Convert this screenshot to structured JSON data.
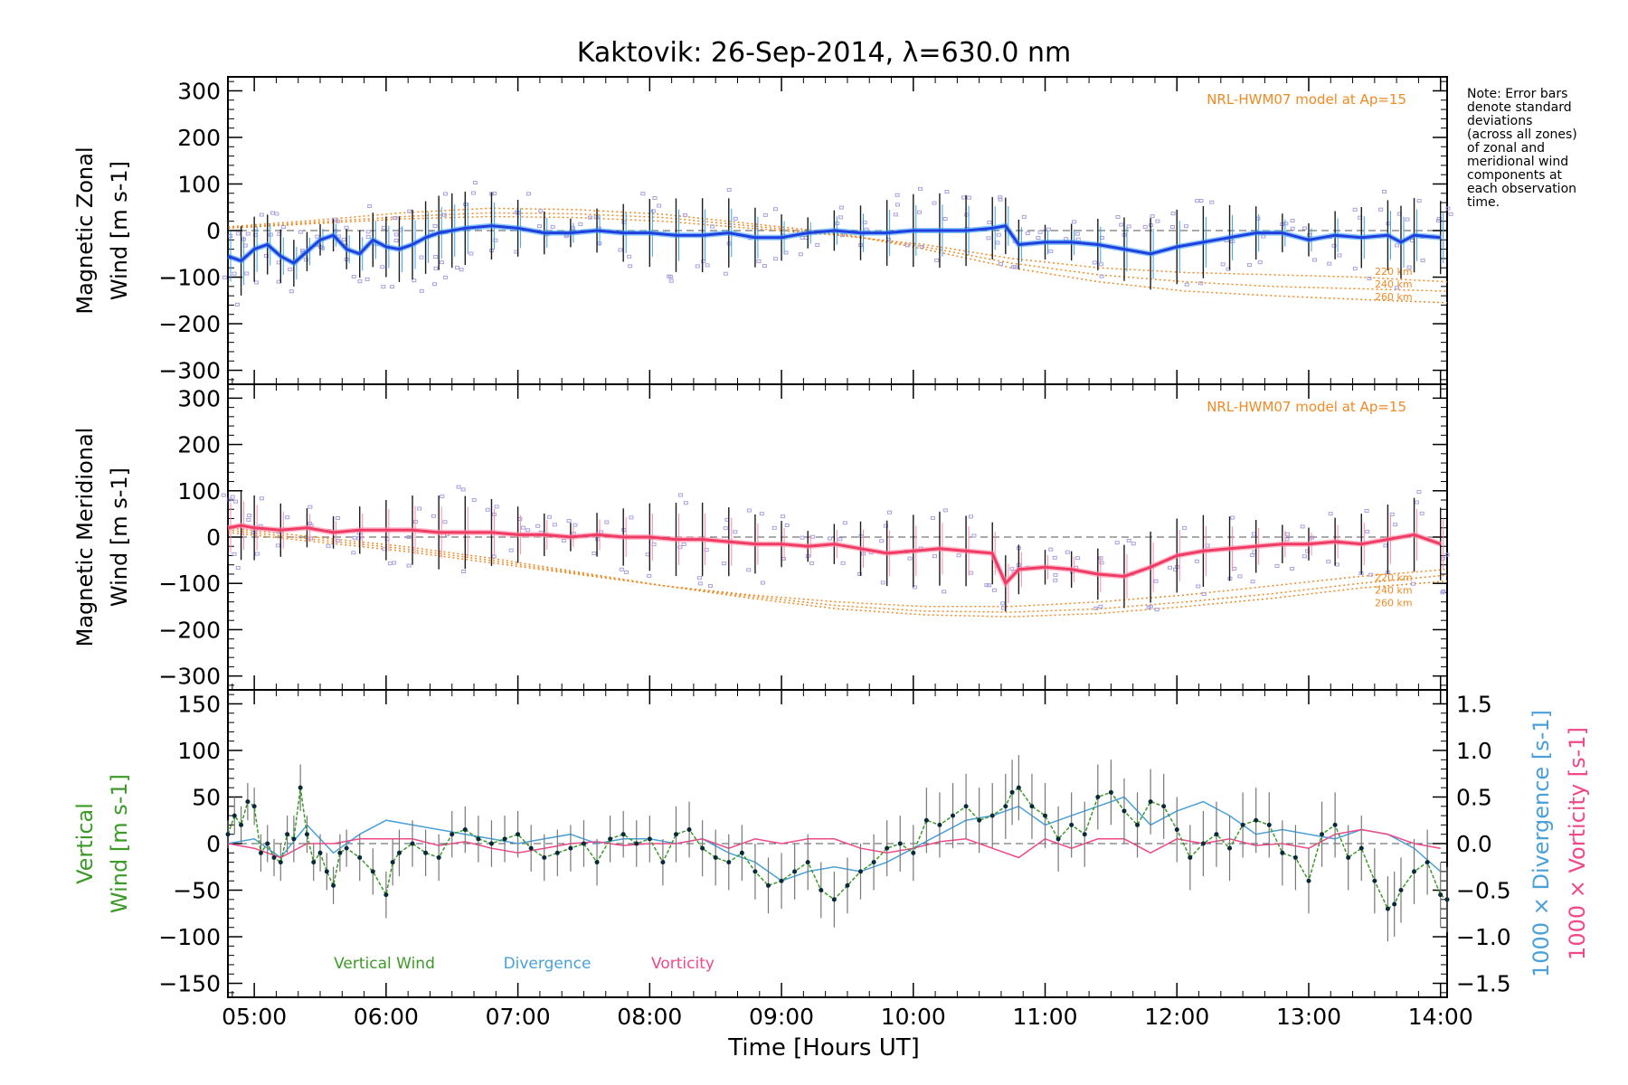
{
  "title": "Kaktovik: 26-Sep-2014, λ=630.0 nm",
  "note": [
    "Note: Error bars",
    "denote standard",
    "deviations",
    "(across all zones)",
    "of zonal and",
    "meridional wind",
    "components at",
    "each observation",
    "time."
  ],
  "colors": {
    "zonal": "#1f3fe0",
    "zonal_light": "#3aa0f0",
    "meridional": "#f03c64",
    "meridional_light": "#ff8aa8",
    "model": "#f08a24",
    "scatter": "#a8a0e0",
    "errorbar": "#1a1a1a",
    "vertical": "#3c9a28",
    "divergence": "#4aa0d8",
    "vorticity": "#f04888"
  },
  "xaxis": {
    "label": "Time [Hours UT]",
    "ticks": [
      "05:00",
      "06:00",
      "07:00",
      "08:00",
      "09:00",
      "10:00",
      "11:00",
      "12:00",
      "13:00",
      "14:00"
    ],
    "range": [
      4.8,
      14.05
    ]
  },
  "chart_data": [
    {
      "type": "line",
      "name": "zonal",
      "ylabel_lines": [
        "Magnetic Zonal",
        "Wind [m s-1]"
      ],
      "model_label": "NRL-HWM07 model at Ap=15",
      "model_altitudes": [
        "220 km",
        "240 km",
        "260 km"
      ],
      "ylim": [
        -330,
        330
      ],
      "yticks": [
        -300,
        -200,
        -100,
        0,
        100,
        200,
        300
      ],
      "x": [
        4.8,
        4.9,
        5.0,
        5.1,
        5.2,
        5.3,
        5.4,
        5.5,
        5.6,
        5.7,
        5.8,
        5.9,
        6.0,
        6.1,
        6.2,
        6.3,
        6.4,
        6.5,
        6.6,
        6.8,
        7.0,
        7.2,
        7.4,
        7.6,
        7.8,
        8.0,
        8.2,
        8.4,
        8.6,
        8.8,
        9.0,
        9.2,
        9.4,
        9.6,
        9.8,
        10.0,
        10.2,
        10.4,
        10.6,
        10.7,
        10.8,
        11.0,
        11.2,
        11.4,
        11.6,
        11.8,
        12.0,
        12.2,
        12.4,
        12.6,
        12.8,
        13.0,
        13.2,
        13.4,
        13.6,
        13.7,
        13.8,
        14.0
      ],
      "values": [
        -55,
        -65,
        -40,
        -30,
        -55,
        -70,
        -45,
        -20,
        -10,
        -40,
        -50,
        -20,
        -35,
        -40,
        -30,
        -15,
        -5,
        0,
        5,
        10,
        5,
        -5,
        -5,
        0,
        -5,
        -5,
        -10,
        -10,
        -5,
        -15,
        -15,
        -5,
        0,
        -5,
        -5,
        0,
        0,
        0,
        5,
        10,
        -30,
        -25,
        -25,
        -30,
        -40,
        -50,
        -35,
        -25,
        -15,
        -5,
        -5,
        -20,
        -10,
        -15,
        -10,
        -25,
        -10,
        -15
      ],
      "model_curves": [
        {
          "altitude": "220 km",
          "values": [
            5,
            15,
            25,
            30,
            28,
            20,
            5,
            -10,
            -30,
            -60,
            -80,
            -90,
            -95,
            -100,
            -110
          ]
        },
        {
          "altitude": "240 km",
          "values": [
            5,
            18,
            30,
            38,
            36,
            28,
            10,
            -8,
            -35,
            -70,
            -95,
            -110,
            -120,
            -125,
            -130
          ]
        },
        {
          "altitude": "260 km",
          "values": [
            8,
            22,
            38,
            48,
            45,
            35,
            15,
            -5,
            -40,
            -80,
            -110,
            -130,
            -140,
            -148,
            -155
          ]
        }
      ]
    },
    {
      "type": "line",
      "name": "meridional",
      "ylabel_lines": [
        "Magnetic Meridional",
        "Wind [m s-1]"
      ],
      "model_label": "NRL-HWM07 model at Ap=15",
      "model_altitudes": [
        "220 km",
        "240 km",
        "260 km"
      ],
      "ylim": [
        -330,
        330
      ],
      "yticks": [
        -300,
        -200,
        -100,
        0,
        100,
        200,
        300
      ],
      "x": [
        4.8,
        4.9,
        5.0,
        5.2,
        5.4,
        5.6,
        5.8,
        6.0,
        6.2,
        6.4,
        6.6,
        6.8,
        7.0,
        7.2,
        7.4,
        7.6,
        7.8,
        8.0,
        8.2,
        8.4,
        8.6,
        8.8,
        9.0,
        9.2,
        9.4,
        9.6,
        9.8,
        10.0,
        10.2,
        10.4,
        10.6,
        10.7,
        10.8,
        11.0,
        11.2,
        11.4,
        11.6,
        11.8,
        12.0,
        12.2,
        12.4,
        12.6,
        12.8,
        13.0,
        13.2,
        13.4,
        13.6,
        13.8,
        14.0
      ],
      "values": [
        20,
        25,
        20,
        15,
        20,
        10,
        15,
        15,
        15,
        10,
        10,
        10,
        5,
        5,
        0,
        5,
        0,
        0,
        -5,
        -5,
        -10,
        -15,
        -15,
        -20,
        -15,
        -25,
        -35,
        -30,
        -25,
        -30,
        -35,
        -100,
        -70,
        -65,
        -70,
        -80,
        -85,
        -65,
        -40,
        -30,
        -25,
        -20,
        -15,
        -15,
        -10,
        -15,
        -5,
        5,
        -15
      ],
      "model_curves": [
        {
          "altitude": "220 km",
          "values": [
            10,
            -10,
            -30,
            -55,
            -80,
            -105,
            -125,
            -140,
            -150,
            -150,
            -140,
            -125,
            -105,
            -85,
            -70
          ]
        },
        {
          "altitude": "240 km",
          "values": [
            15,
            -5,
            -25,
            -50,
            -78,
            -105,
            -128,
            -148,
            -160,
            -162,
            -155,
            -140,
            -122,
            -100,
            -82
          ]
        },
        {
          "altitude": "260 km",
          "values": [
            20,
            0,
            -20,
            -45,
            -75,
            -105,
            -132,
            -155,
            -168,
            -172,
            -165,
            -150,
            -132,
            -110,
            -95
          ]
        }
      ]
    },
    {
      "type": "line",
      "name": "vertical",
      "ylabel_lines": [
        "Vertical",
        "Wind [m s-1]"
      ],
      "ylabel_right_1": "1000 × Divergence [s-1]",
      "ylabel_right_2": "1000 × Vorticity [s-1]",
      "ylim": [
        -165,
        165
      ],
      "yticks": [
        -150,
        -100,
        -50,
        0,
        50,
        100,
        150
      ],
      "y2lim": [
        -1.65,
        1.65
      ],
      "y2ticks": [
        -1.5,
        -1.0,
        -0.5,
        0.0,
        0.5,
        1.0,
        1.5
      ],
      "legend": [
        "Vertical Wind",
        "Divergence",
        "Vorticity"
      ],
      "x": [
        4.8,
        4.85,
        4.9,
        4.95,
        5.0,
        5.05,
        5.1,
        5.15,
        5.2,
        5.25,
        5.3,
        5.35,
        5.4,
        5.45,
        5.5,
        5.55,
        5.6,
        5.65,
        5.7,
        5.8,
        5.9,
        6.0,
        6.05,
        6.1,
        6.2,
        6.3,
        6.4,
        6.5,
        6.6,
        6.7,
        6.8,
        6.9,
        7.0,
        7.1,
        7.2,
        7.3,
        7.4,
        7.5,
        7.6,
        7.7,
        7.8,
        7.9,
        8.0,
        8.1,
        8.2,
        8.3,
        8.4,
        8.5,
        8.6,
        8.7,
        8.8,
        8.9,
        9.0,
        9.1,
        9.2,
        9.3,
        9.4,
        9.5,
        9.6,
        9.7,
        9.8,
        9.9,
        10.0,
        10.1,
        10.2,
        10.3,
        10.4,
        10.5,
        10.6,
        10.7,
        10.75,
        10.8,
        10.9,
        11.0,
        11.1,
        11.2,
        11.3,
        11.4,
        11.5,
        11.6,
        11.7,
        11.8,
        11.9,
        12.0,
        12.1,
        12.2,
        12.3,
        12.4,
        12.5,
        12.6,
        12.7,
        12.8,
        12.9,
        13.0,
        13.1,
        13.2,
        13.3,
        13.4,
        13.5,
        13.6,
        13.65,
        13.7,
        13.8,
        13.9,
        14.0,
        14.05
      ],
      "values": [
        10,
        30,
        20,
        45,
        40,
        -10,
        0,
        -15,
        -20,
        10,
        5,
        60,
        10,
        -20,
        -10,
        -30,
        -45,
        -10,
        -5,
        -15,
        -30,
        -55,
        -20,
        -10,
        0,
        -10,
        -15,
        10,
        15,
        5,
        0,
        5,
        10,
        -5,
        -15,
        -10,
        -5,
        0,
        -20,
        5,
        10,
        0,
        5,
        -20,
        10,
        15,
        -5,
        -15,
        -20,
        -10,
        -30,
        -45,
        -40,
        -30,
        -20,
        -50,
        -60,
        -45,
        -30,
        -20,
        -5,
        0,
        -10,
        25,
        20,
        30,
        40,
        25,
        30,
        40,
        55,
        60,
        40,
        30,
        5,
        20,
        10,
        50,
        55,
        35,
        20,
        45,
        40,
        15,
        -15,
        0,
        10,
        -5,
        20,
        25,
        20,
        -10,
        -15,
        -40,
        10,
        20,
        -15,
        -5,
        -40,
        -70,
        -65,
        -50,
        -30,
        -20,
        -55,
        -60
      ],
      "err": [
        15,
        20,
        20,
        20,
        20,
        20,
        20,
        20,
        20,
        20,
        25,
        25,
        20,
        20,
        20,
        20,
        20,
        20,
        20,
        25,
        25,
        25,
        25,
        25,
        25,
        25,
        25,
        25,
        25,
        25,
        25,
        25,
        25,
        25,
        25,
        25,
        25,
        25,
        25,
        25,
        25,
        25,
        25,
        25,
        30,
        30,
        30,
        30,
        30,
        30,
        30,
        30,
        30,
        30,
        30,
        30,
        30,
        30,
        30,
        30,
        30,
        30,
        30,
        35,
        35,
        35,
        35,
        35,
        35,
        35,
        35,
        35,
        35,
        35,
        35,
        35,
        35,
        35,
        35,
        35,
        35,
        35,
        35,
        35,
        35,
        35,
        35,
        35,
        35,
        35,
        35,
        35,
        35,
        35,
        35,
        35,
        35,
        35,
        35,
        35,
        35,
        35,
        35,
        35,
        35,
        35
      ],
      "divergence_x": [
        4.8,
        5.0,
        5.2,
        5.4,
        5.6,
        5.8,
        6.0,
        6.2,
        6.4,
        6.6,
        6.8,
        7.0,
        7.2,
        7.4,
        7.6,
        7.8,
        8.0,
        8.2,
        8.4,
        8.6,
        8.8,
        9.0,
        9.2,
        9.4,
        9.6,
        9.8,
        10.0,
        10.2,
        10.4,
        10.6,
        10.8,
        11.0,
        11.2,
        11.4,
        11.6,
        11.8,
        12.0,
        12.2,
        12.4,
        12.6,
        12.8,
        13.0,
        13.2,
        13.4,
        13.6,
        13.8,
        14.0
      ],
      "divergence": [
        0.0,
        0.05,
        -0.15,
        0.2,
        -0.1,
        0.1,
        0.25,
        0.2,
        0.15,
        0.1,
        0.05,
        0.0,
        0.05,
        0.1,
        0.0,
        0.05,
        0.05,
        0.0,
        0.05,
        -0.1,
        -0.2,
        -0.4,
        -0.3,
        -0.25,
        -0.3,
        -0.2,
        -0.05,
        0.1,
        0.25,
        0.3,
        0.4,
        0.2,
        0.3,
        0.4,
        0.5,
        0.2,
        0.35,
        0.45,
        0.3,
        0.1,
        0.15,
        0.1,
        0.05,
        0.15,
        0.1,
        -0.05,
        -0.3
      ],
      "vorticity_x": [
        4.8,
        5.0,
        5.2,
        5.4,
        5.6,
        5.8,
        6.0,
        6.2,
        6.4,
        6.6,
        6.8,
        7.0,
        7.2,
        7.4,
        7.6,
        7.8,
        8.0,
        8.2,
        8.4,
        8.6,
        8.8,
        9.0,
        9.2,
        9.4,
        9.6,
        9.8,
        10.0,
        10.2,
        10.4,
        10.6,
        10.8,
        11.0,
        11.2,
        11.4,
        11.6,
        11.8,
        12.0,
        12.2,
        12.4,
        12.6,
        12.8,
        13.0,
        13.2,
        13.4,
        13.6,
        13.8,
        14.0
      ],
      "vorticity": [
        0.0,
        -0.05,
        -0.15,
        0.0,
        0.0,
        0.05,
        0.05,
        0.05,
        -0.02,
        0.02,
        -0.05,
        -0.1,
        -0.05,
        0.0,
        0.02,
        -0.02,
        0.0,
        0.0,
        0.05,
        -0.05,
        0.05,
        0.0,
        0.05,
        0.05,
        -0.05,
        -0.1,
        -0.05,
        0.02,
        0.05,
        -0.05,
        -0.15,
        0.05,
        -0.05,
        0.05,
        0.05,
        -0.1,
        0.05,
        0.0,
        0.05,
        -0.02,
        0.0,
        -0.05,
        0.1,
        0.15,
        0.1,
        0.0,
        -0.05
      ]
    }
  ]
}
